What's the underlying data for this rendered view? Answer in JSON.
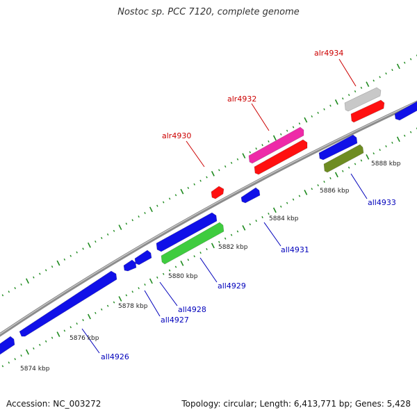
{
  "title": "Nostoc sp. PCC 7120, complete genome",
  "footer": {
    "accession": "Accession: NC_003272",
    "summary": "Topology: circular; Length: 6,413,771 bp; Genes: 5,428"
  },
  "colors": {
    "backbone": "#8c8c8c",
    "ticks": "#1e8a1e",
    "forward_label": "#cc0000",
    "reverse_label": "#0000bb",
    "blue_gene": "#1010e8",
    "red_gene": "#ff1010",
    "magenta_gene": "#ee2aa8",
    "green_gene": "#3fcc3f",
    "olive_gene": "#6e8c22",
    "grey_gene": "#c8c8c8"
  },
  "scale_labels": [
    "5874 kbp",
    "5876 kbp",
    "5878 kbp",
    "5880 kbp",
    "5882 kbp",
    "5884 kbp",
    "5886 kbp",
    "5888 kbp"
  ],
  "genes": [
    {
      "label": "alr4930",
      "strand": "forward"
    },
    {
      "label": "alr4932",
      "strand": "forward"
    },
    {
      "label": "alr4934",
      "strand": "forward"
    },
    {
      "label": "all4926",
      "strand": "reverse"
    },
    {
      "label": "all4927",
      "strand": "reverse"
    },
    {
      "label": "all4928",
      "strand": "reverse"
    },
    {
      "label": "all4929",
      "strand": "reverse"
    },
    {
      "label": "all4931",
      "strand": "reverse"
    },
    {
      "label": "all4933",
      "strand": "reverse"
    }
  ]
}
